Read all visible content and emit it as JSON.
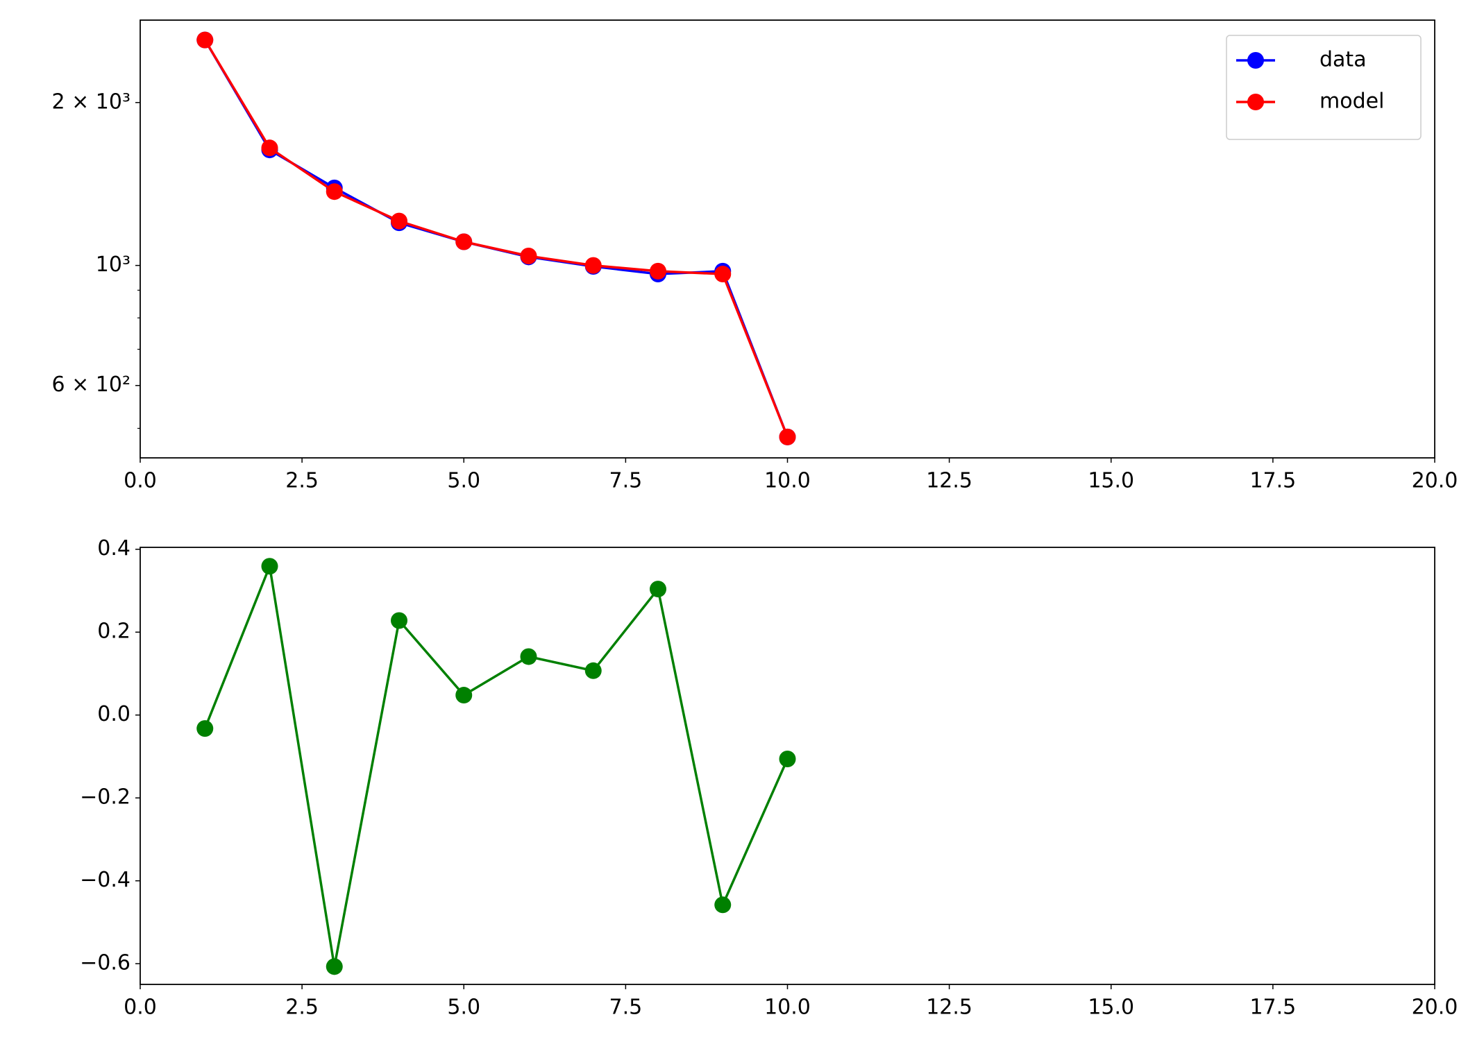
{
  "chart_data": [
    {
      "type": "line",
      "yscale": "log",
      "legend": "upper right",
      "x": [
        1,
        2,
        3,
        4,
        5,
        6,
        7,
        8,
        9,
        10
      ],
      "series": [
        {
          "name": "data",
          "color": "#0000ff",
          "values": [
            2610,
            1635,
            1391,
            1199,
            1106,
            1037,
            996,
            964,
            976,
            482
          ]
        },
        {
          "name": "model",
          "color": "#ff0000",
          "values": [
            2610,
            1649,
            1369,
            1208,
            1106,
            1041,
            1000,
            976,
            964,
            482
          ]
        }
      ],
      "xlim": [
        0,
        20
      ],
      "xticks": [
        {
          "value": 0,
          "label": "0.0"
        },
        {
          "value": 2.5,
          "label": "2.5"
        },
        {
          "value": 5,
          "label": "5.0"
        },
        {
          "value": 7.5,
          "label": "7.5"
        },
        {
          "value": 10,
          "label": "10.0"
        },
        {
          "value": 12.5,
          "label": "12.5"
        },
        {
          "value": 15,
          "label": "15.0"
        },
        {
          "value": 17.5,
          "label": "17.5"
        },
        {
          "value": 20,
          "label": "20.0"
        }
      ],
      "ylim": [
        441,
        2840
      ],
      "yticks": [
        {
          "value": 600,
          "label": "6 × 10²"
        },
        {
          "value": 1000,
          "label": "10³"
        },
        {
          "value": 2000,
          "label": "2 × 10³"
        }
      ],
      "yminorticks": [
        500,
        700,
        800,
        900
      ]
    },
    {
      "type": "line",
      "x": [
        1,
        2,
        3,
        4,
        5,
        6,
        7,
        8,
        9,
        10
      ],
      "series": [
        {
          "color": "#008000",
          "values": [
            -0.0325,
            0.359,
            -0.607,
            0.228,
            0.048,
            0.141,
            0.107,
            0.304,
            -0.458,
            -0.106
          ]
        }
      ],
      "xlim": [
        0,
        20
      ],
      "xticks": [
        {
          "value": 0,
          "label": "0.0"
        },
        {
          "value": 2.5,
          "label": "2.5"
        },
        {
          "value": 5,
          "label": "5.0"
        },
        {
          "value": 7.5,
          "label": "7.5"
        },
        {
          "value": 10,
          "label": "10.0"
        },
        {
          "value": 12.5,
          "label": "12.5"
        },
        {
          "value": 15,
          "label": "15.0"
        },
        {
          "value": 17.5,
          "label": "17.5"
        },
        {
          "value": 20,
          "label": "20.0"
        }
      ],
      "ylim": [
        -0.65,
        0.4046
      ],
      "yticks": [
        {
          "value": -0.6,
          "label": "−0.6"
        },
        {
          "value": -0.4,
          "label": "−0.4"
        },
        {
          "value": -0.2,
          "label": "−0.2"
        },
        {
          "value": 0,
          "label": "0.0"
        },
        {
          "value": 0.2,
          "label": "0.2"
        },
        {
          "value": 0.4,
          "label": "0.4"
        }
      ]
    }
  ]
}
